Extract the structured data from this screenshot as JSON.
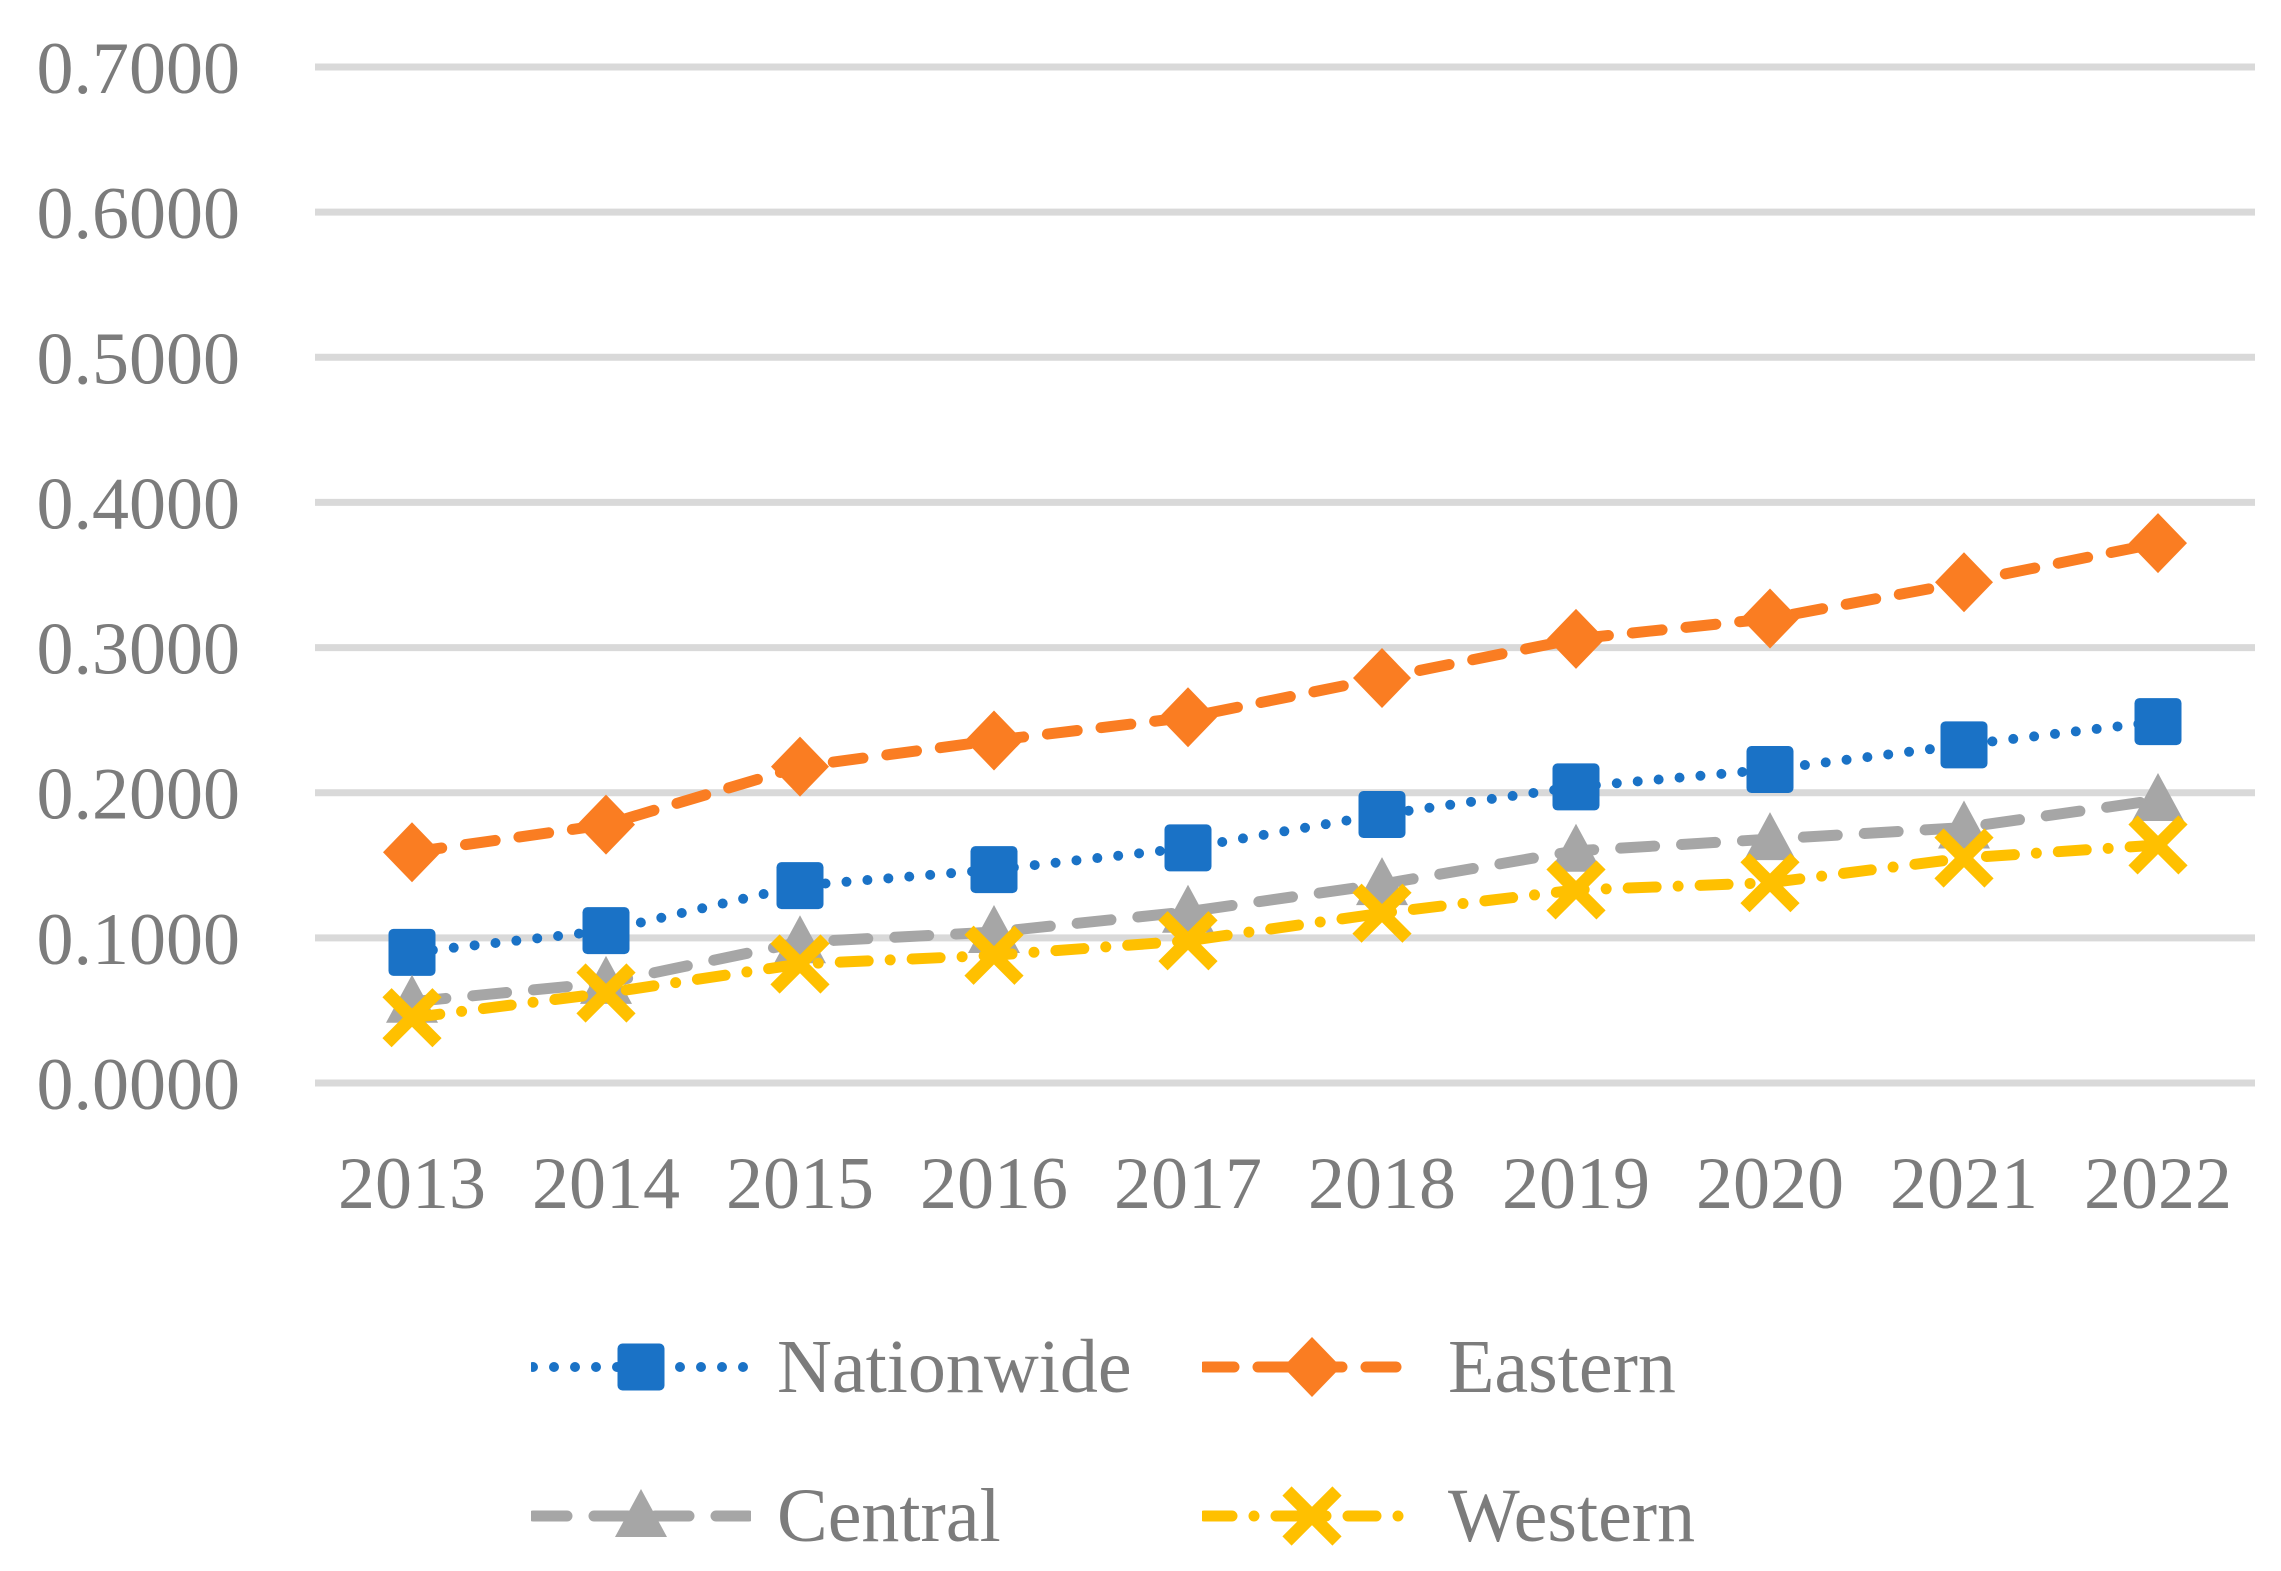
{
  "chart_data": {
    "type": "line",
    "title": "",
    "categories": [
      "2013",
      "2014",
      "2015",
      "2016",
      "2017",
      "2018",
      "2019",
      "2020",
      "2021",
      "2022"
    ],
    "series": [
      {
        "name": "Nationwide",
        "color": "#1A72C6",
        "marker": "square",
        "dash": "dot",
        "values": [
          0.09,
          0.105,
          0.136,
          0.147,
          0.162,
          0.185,
          0.204,
          0.216,
          0.233,
          0.249
        ]
      },
      {
        "name": "Eastern",
        "color": "#FA7D22",
        "marker": "diamond",
        "dash": "dash",
        "values": [
          0.159,
          0.178,
          0.218,
          0.236,
          0.252,
          0.279,
          0.306,
          0.32,
          0.345,
          0.372
        ]
      },
      {
        "name": "Central",
        "color": "#A6A6A6",
        "marker": "triangle",
        "dash": "longdash",
        "values": [
          0.056,
          0.069,
          0.097,
          0.104,
          0.118,
          0.137,
          0.16,
          0.168,
          0.176,
          0.195
        ]
      },
      {
        "name": "Western",
        "color": "#FFC000",
        "marker": "x",
        "dash": "dashdot",
        "values": [
          0.045,
          0.062,
          0.082,
          0.088,
          0.098,
          0.117,
          0.133,
          0.138,
          0.155,
          0.164
        ]
      }
    ],
    "ylim": [
      0,
      0.7
    ],
    "ytick_labels": [
      "0.0000",
      "0.1000",
      "0.2000",
      "0.3000",
      "0.4000",
      "0.5000",
      "0.6000",
      "0.7000"
    ],
    "xlabel": "",
    "ylabel": "",
    "grid": true,
    "legend_position": "bottom"
  },
  "colors": {
    "grid": "#D9D9D9",
    "axis_text": "#7C7C7C",
    "background": "#FFFFFF"
  }
}
